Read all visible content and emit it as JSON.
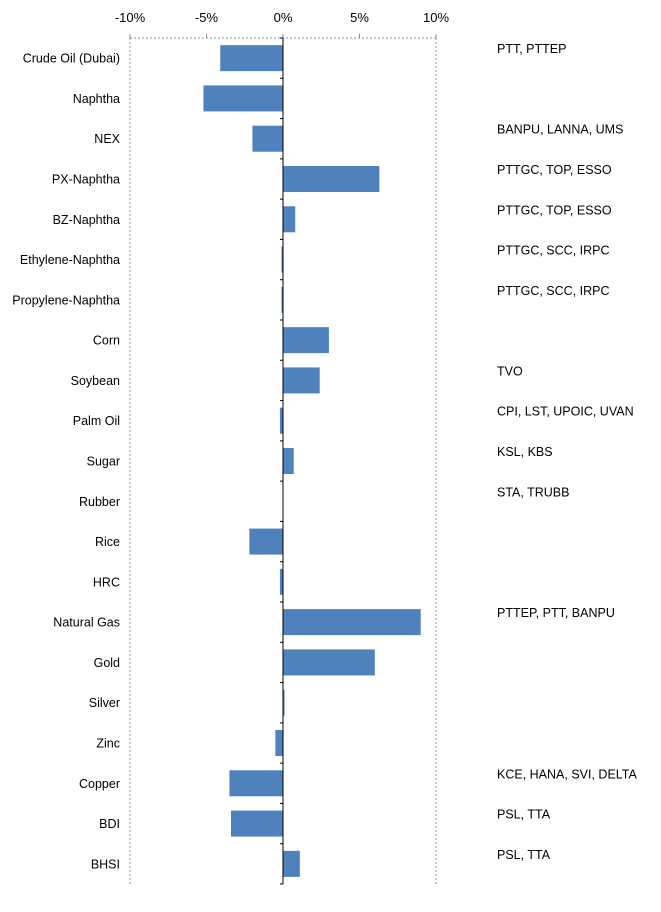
{
  "chart_data": {
    "type": "bar",
    "orientation": "horizontal",
    "x_ticks": [
      "-10%",
      "-5%",
      "0%",
      "5%",
      "10%"
    ],
    "xlim": [
      -10,
      10
    ],
    "x_unit": "%",
    "grid": "vertical dashed at axis limits",
    "bar_color": "#4F81BD",
    "categories": [
      "Crude Oil (Dubai)",
      "Naphtha",
      "NEX",
      "PX-Naphtha",
      "BZ-Naphtha",
      "Ethylene-Naphtha",
      "Propylene-Naphtha",
      "Corn",
      "Soybean",
      "Palm Oil",
      "Sugar",
      "Rubber",
      "Rice",
      "HRC",
      "Natural Gas",
      "Gold",
      "Silver",
      "Zinc",
      "Copper",
      "BDI",
      "BHSI"
    ],
    "values": [
      -4.1,
      -5.2,
      -2.0,
      6.3,
      0.8,
      -0.1,
      -0.1,
      3.0,
      2.4,
      -0.2,
      0.7,
      0.0,
      -2.2,
      -0.2,
      9.0,
      6.0,
      0.1,
      -0.5,
      -3.5,
      -3.4,
      1.1
    ],
    "related_stocks": [
      "PTT, PTTEP",
      "",
      "BANPU, LANNA, UMS",
      "PTTGC, TOP, ESSO",
      "PTTGC, TOP, ESSO",
      "PTTGC, SCC, IRPC",
      "PTTGC, SCC, IRPC",
      "",
      "TVO",
      "CPI, LST, UPOIC, UVAN",
      "KSL, KBS",
      "STA, TRUBB",
      "",
      "",
      "PTTEP, PTT, BANPU",
      "",
      "",
      "",
      "KCE, HANA, SVI, DELTA",
      "PSL, TTA",
      "PSL, TTA"
    ]
  }
}
